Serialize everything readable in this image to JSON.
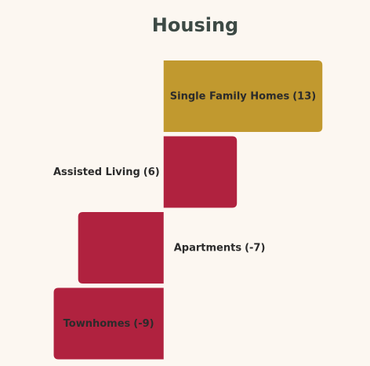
{
  "chart_data": {
    "type": "bar",
    "orientation": "horizontal",
    "title": "Housing",
    "categories": [
      "Single Family Homes",
      "Assisted Living",
      "Apartments",
      "Townhomes"
    ],
    "values": [
      13,
      6,
      -7,
      -9
    ],
    "value_labels": [
      "(13)",
      "(6)",
      "(-7)",
      "(-9)"
    ],
    "colors": [
      "#c1992f",
      "#b0223f",
      "#b0223f",
      "#b0223f"
    ],
    "xlim": [
      -13.4,
      16.9
    ]
  }
}
